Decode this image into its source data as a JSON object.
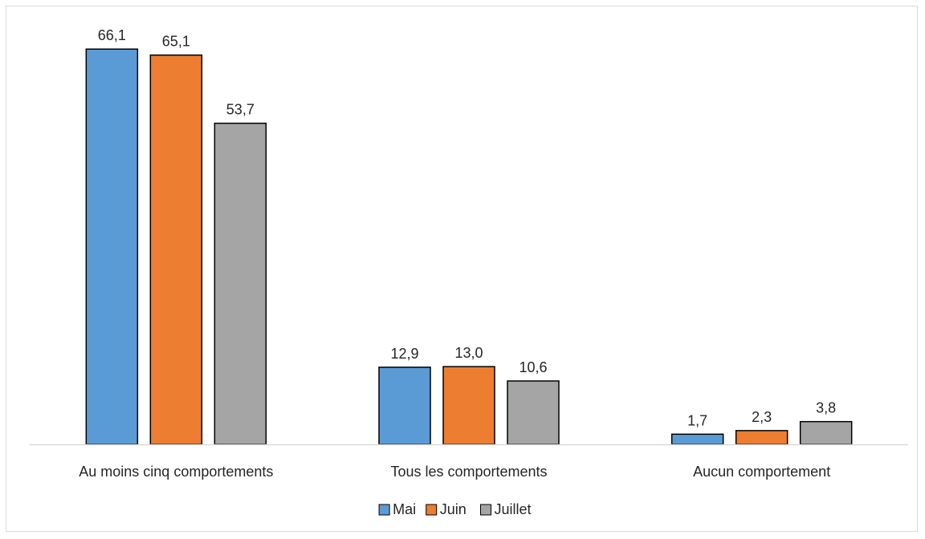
{
  "chart_data": {
    "type": "bar",
    "categories": [
      "Au moins cinq comportements",
      "Tous les comportements",
      "Aucun comportement"
    ],
    "series": [
      {
        "name": "Mai",
        "color": "#5b9bd5",
        "values": [
          66.1,
          12.9,
          1.7
        ],
        "labels": [
          "66,1",
          "12,9",
          "1,7"
        ]
      },
      {
        "name": "Juin",
        "color": "#ed7d31",
        "values": [
          65.1,
          13.0,
          2.3
        ],
        "labels": [
          "65,1",
          "13,0",
          "2,3"
        ]
      },
      {
        "name": "Juillet",
        "color": "#a5a5a5",
        "values": [
          53.7,
          10.6,
          3.8
        ],
        "labels": [
          "53,7",
          "10,6",
          "3,8"
        ]
      }
    ],
    "title": "",
    "xlabel": "",
    "ylabel": "",
    "ylim": [
      0,
      70
    ],
    "grid": false,
    "legend_position": "bottom"
  }
}
